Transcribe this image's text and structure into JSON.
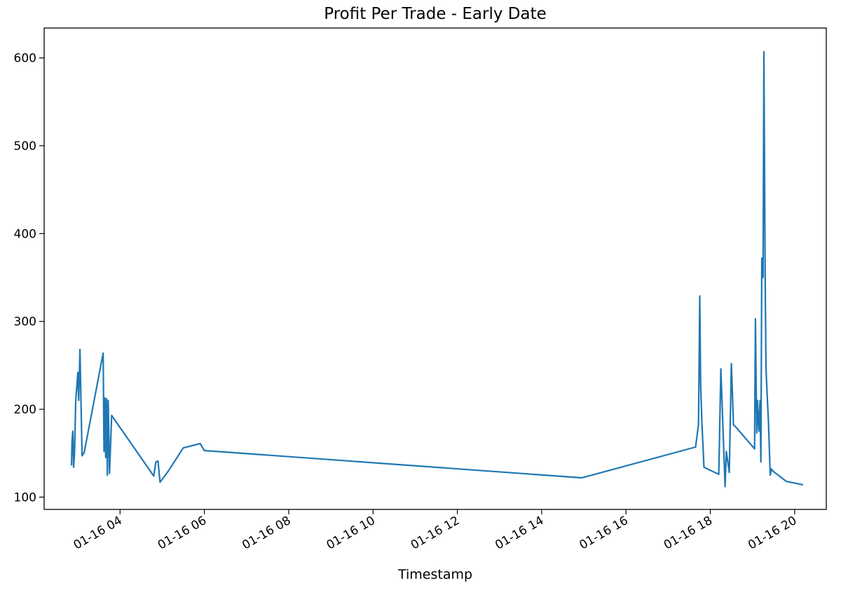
{
  "chart_data": {
    "type": "line",
    "title": "Profit Per Trade - Early Date",
    "xlabel": "Timestamp",
    "ylabel": "",
    "x_unit": "hours on 01-16",
    "xlim": [
      2.2,
      20.75
    ],
    "ylim": [
      86,
      634
    ],
    "grid": false,
    "legend": "none",
    "line_color": "#1f77b4",
    "x_ticks": [
      {
        "value": 4,
        "label": "01-16 04"
      },
      {
        "value": 6,
        "label": "01-16 06"
      },
      {
        "value": 8,
        "label": "01-16 08"
      },
      {
        "value": 10,
        "label": "01-16 10"
      },
      {
        "value": 12,
        "label": "01-16 12"
      },
      {
        "value": 14,
        "label": "01-16 14"
      },
      {
        "value": 16,
        "label": "01-16 16"
      },
      {
        "value": 18,
        "label": "01-16 18"
      },
      {
        "value": 20,
        "label": "01-16 20"
      }
    ],
    "y_ticks": [
      {
        "value": 100,
        "label": "100"
      },
      {
        "value": 200,
        "label": "200"
      },
      {
        "value": 300,
        "label": "300"
      },
      {
        "value": 400,
        "label": "400"
      },
      {
        "value": 500,
        "label": "500"
      },
      {
        "value": 600,
        "label": "600"
      }
    ],
    "series": [
      {
        "x": [
          2.85,
          2.86,
          2.88,
          2.9,
          2.92,
          2.95,
          3.0,
          3.02,
          3.05,
          3.1,
          3.15,
          3.6,
          3.62,
          3.64,
          3.66,
          3.68,
          3.7,
          3.72,
          3.75,
          3.8,
          4.8,
          4.85,
          4.9,
          4.95,
          5.15,
          5.5,
          5.9,
          6.0,
          14.95,
          17.65,
          17.72,
          17.75,
          17.77,
          17.8,
          17.85,
          18.2,
          18.25,
          18.35,
          18.38,
          18.45,
          18.5,
          18.55,
          18.6,
          19.05,
          19.07,
          19.1,
          19.12,
          19.15,
          19.18,
          19.2,
          19.22,
          19.25,
          19.27,
          19.3,
          19.32,
          19.35,
          19.38,
          19.42,
          19.45,
          19.48,
          19.5,
          19.8,
          20.2
        ],
        "y": [
          136,
          162,
          175,
          134,
          150,
          210,
          242,
          210,
          268,
          147,
          151,
          264,
          152,
          213,
          145,
          212,
          125,
          210,
          127,
          193,
          124,
          140,
          141,
          117,
          130,
          156,
          161,
          153,
          122,
          157,
          183,
          329,
          230,
          185,
          134,
          126,
          246,
          112,
          152,
          128,
          252,
          182,
          180,
          155,
          303,
          173,
          210,
          175,
          210,
          140,
          372,
          350,
          607,
          350,
          246,
          214,
          184,
          125,
          132,
          130,
          129,
          118,
          114
        ]
      }
    ]
  }
}
